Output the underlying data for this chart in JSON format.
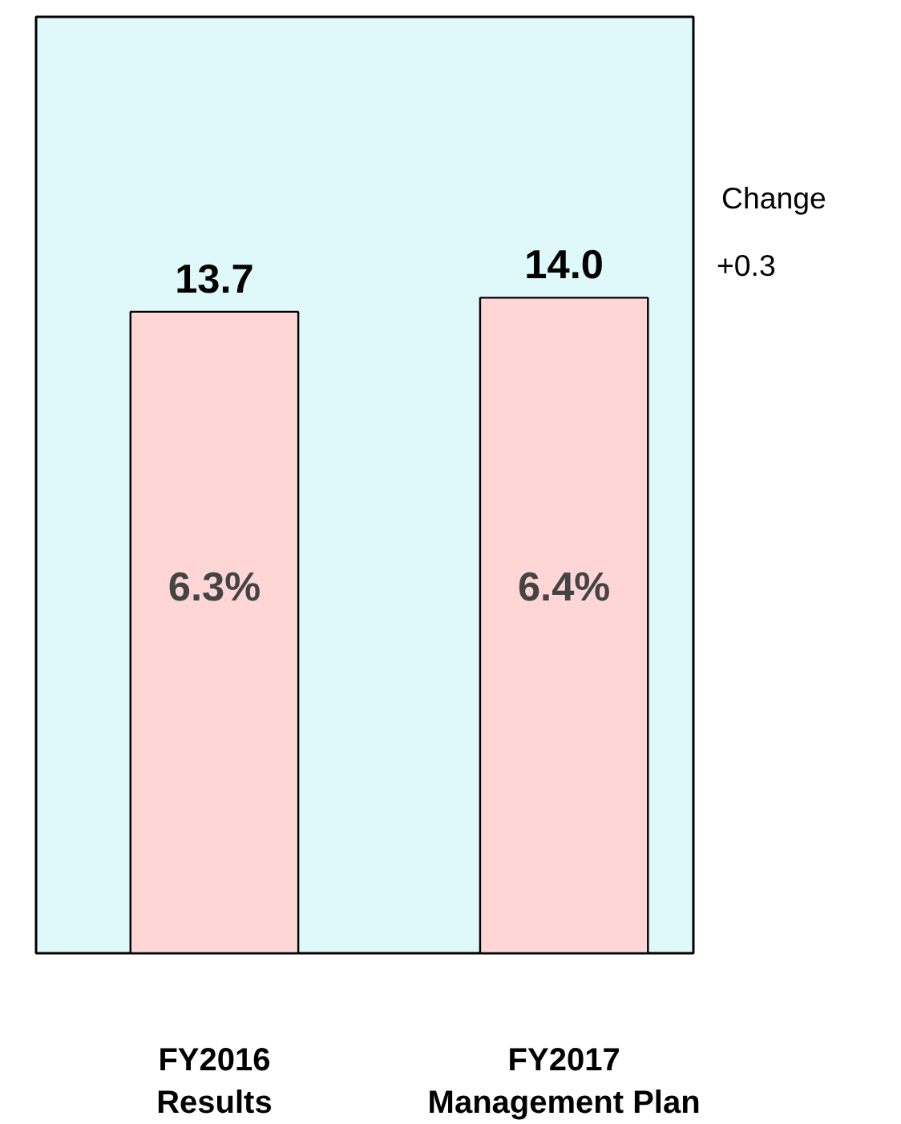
{
  "chart_data": {
    "type": "bar",
    "categories": [
      "FY2016\nResults",
      "FY2017\nManagement Plan"
    ],
    "values": [
      13.7,
      14.0
    ],
    "value_labels": [
      "13.7",
      "14.0"
    ],
    "color": "#ffd6d6",
    "ylim": [
      0,
      20
    ],
    "grid": false,
    "annotations": [
      "6.3%",
      "6.4%",
      "Change",
      "+0.3"
    ]
  }
}
